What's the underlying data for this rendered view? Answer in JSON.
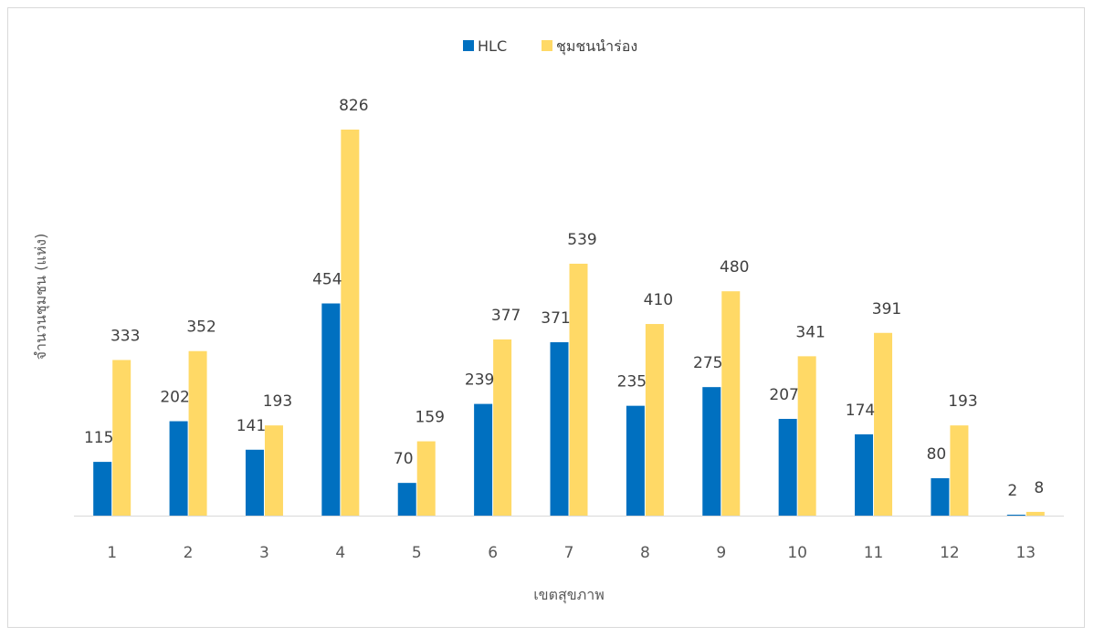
{
  "chart_data": {
    "type": "bar",
    "categories": [
      "1",
      "2",
      "3",
      "4",
      "5",
      "6",
      "7",
      "8",
      "9",
      "10",
      "11",
      "12",
      "13"
    ],
    "series": [
      {
        "name": "HLC",
        "color": "#0070c0",
        "values": [
          115,
          202,
          141,
          454,
          70,
          239,
          371,
          235,
          275,
          207,
          174,
          80,
          2
        ]
      },
      {
        "name": "ชุมชนนำร่อง",
        "color": "#ffd966",
        "values": [
          333,
          352,
          193,
          826,
          159,
          377,
          539,
          410,
          480,
          341,
          391,
          193,
          8
        ]
      }
    ],
    "xlabel": "เขตสุขภาพ",
    "ylabel": "จำนวนชุมชน (แห่ง)",
    "ylim": [
      0,
      826
    ],
    "grid": false,
    "legend_position": "top-center",
    "data_labels": true
  }
}
